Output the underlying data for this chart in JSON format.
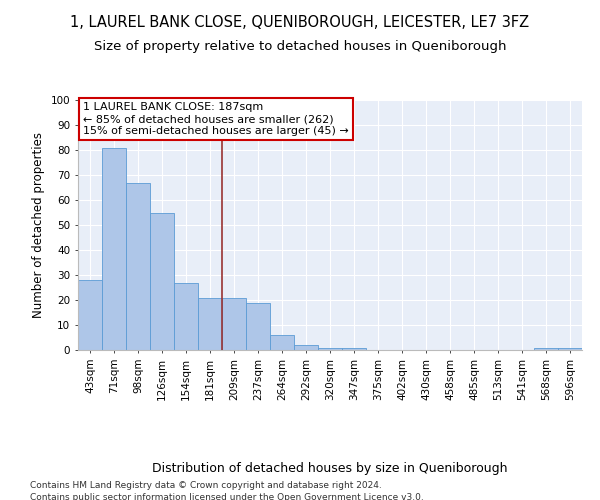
{
  "title1": "1, LAUREL BANK CLOSE, QUENIBOROUGH, LEICESTER, LE7 3FZ",
  "title2": "Size of property relative to detached houses in Queniborough",
  "xlabel": "Distribution of detached houses by size in Queniborough",
  "ylabel": "Number of detached properties",
  "categories": [
    "43sqm",
    "71sqm",
    "98sqm",
    "126sqm",
    "154sqm",
    "181sqm",
    "209sqm",
    "237sqm",
    "264sqm",
    "292sqm",
    "320sqm",
    "347sqm",
    "375sqm",
    "402sqm",
    "430sqm",
    "458sqm",
    "485sqm",
    "513sqm",
    "541sqm",
    "568sqm",
    "596sqm"
  ],
  "values": [
    28,
    81,
    67,
    55,
    27,
    21,
    21,
    19,
    6,
    2,
    1,
    1,
    0,
    0,
    0,
    0,
    0,
    0,
    0,
    1,
    1
  ],
  "bar_color": "#aec6e8",
  "bar_edge_color": "#5b9bd5",
  "background_color": "#e8eef8",
  "grid_color": "#ffffff",
  "vline_color": "#993333",
  "annotation_text": "1 LAUREL BANK CLOSE: 187sqm\n← 85% of detached houses are smaller (262)\n15% of semi-detached houses are larger (45) →",
  "annotation_box_color": "#cc0000",
  "ylim": [
    0,
    100
  ],
  "footnote1": "Contains HM Land Registry data © Crown copyright and database right 2024.",
  "footnote2": "Contains public sector information licensed under the Open Government Licence v3.0.",
  "title_fontsize": 10.5,
  "subtitle_fontsize": 9.5,
  "xlabel_fontsize": 9,
  "ylabel_fontsize": 8.5,
  "tick_fontsize": 7.5,
  "annot_fontsize": 8,
  "footnote_fontsize": 6.5
}
